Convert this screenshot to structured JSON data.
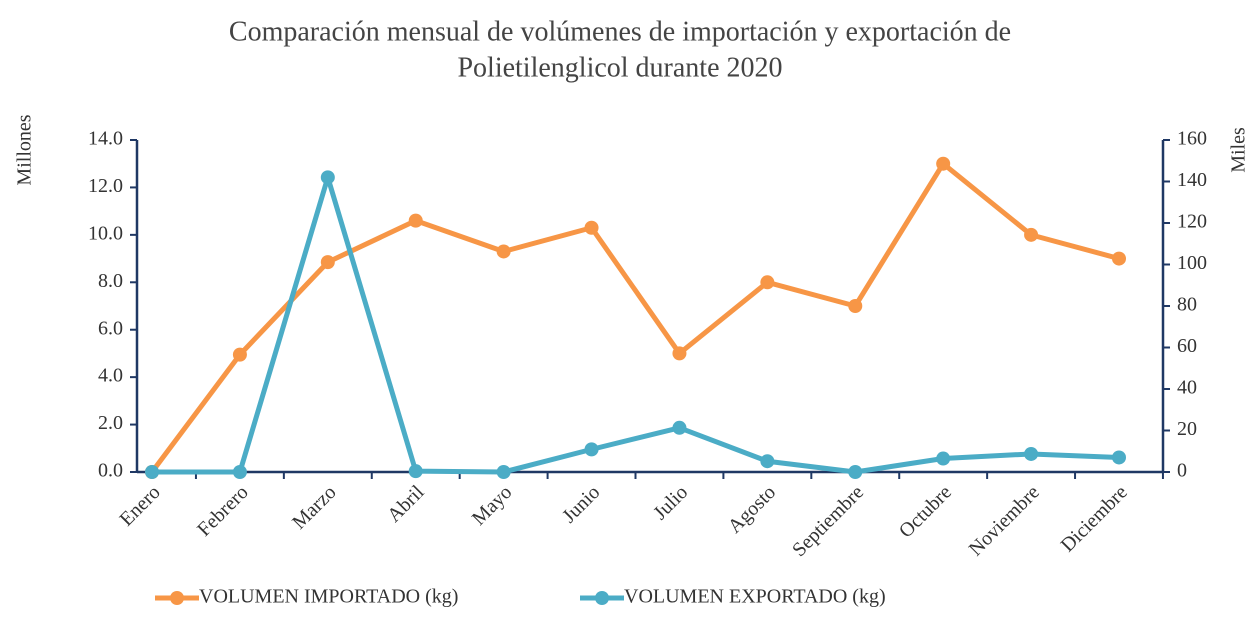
{
  "chart_data": {
    "type": "line",
    "title": "Comparación mensual de volúmenes de importación y exportación de",
    "subtitle": "Polietilenglicol durante 2020",
    "ylabel": "Millones",
    "y2label": "Miles",
    "categories": [
      "Enero",
      "Febrero",
      "Marzo",
      "Abril",
      "Mayo",
      "Junio",
      "Julio",
      "Agosto",
      "Septiembre",
      "Octubre",
      "Noviembre",
      "Diciembre"
    ],
    "series": [
      {
        "name": "VOLUMEN IMPORTADO (kg)",
        "color": "#f79646",
        "axis": "y",
        "values": [
          0,
          4.95,
          8.85,
          10.6,
          9.3,
          10.3,
          5.0,
          8.0,
          7.0,
          13.0,
          10.0,
          9.0
        ]
      },
      {
        "name": "VOLUMEN EXPORTADO (kg)",
        "color": "#4bacc6",
        "axis": "y2",
        "values": [
          0,
          0,
          142,
          0.4,
          0,
          10.9,
          21.3,
          5.2,
          0,
          6.5,
          8.7,
          7.0
        ]
      }
    ],
    "ylim": [
      0,
      14
    ],
    "yticks": [
      {
        "value": 0,
        "label": "0.0"
      },
      {
        "value": 2,
        "label": "2.0"
      },
      {
        "value": 4,
        "label": "4.0"
      },
      {
        "value": 6,
        "label": "6.0"
      },
      {
        "value": 8,
        "label": "8.0"
      },
      {
        "value": 10,
        "label": "10.0"
      },
      {
        "value": 12,
        "label": "12.0"
      },
      {
        "value": 14,
        "label": "14.0"
      }
    ],
    "y2lim": [
      0,
      160
    ],
    "y2ticks": [
      0,
      20,
      40,
      60,
      80,
      100,
      120,
      140,
      160
    ],
    "legend": "bottom"
  }
}
